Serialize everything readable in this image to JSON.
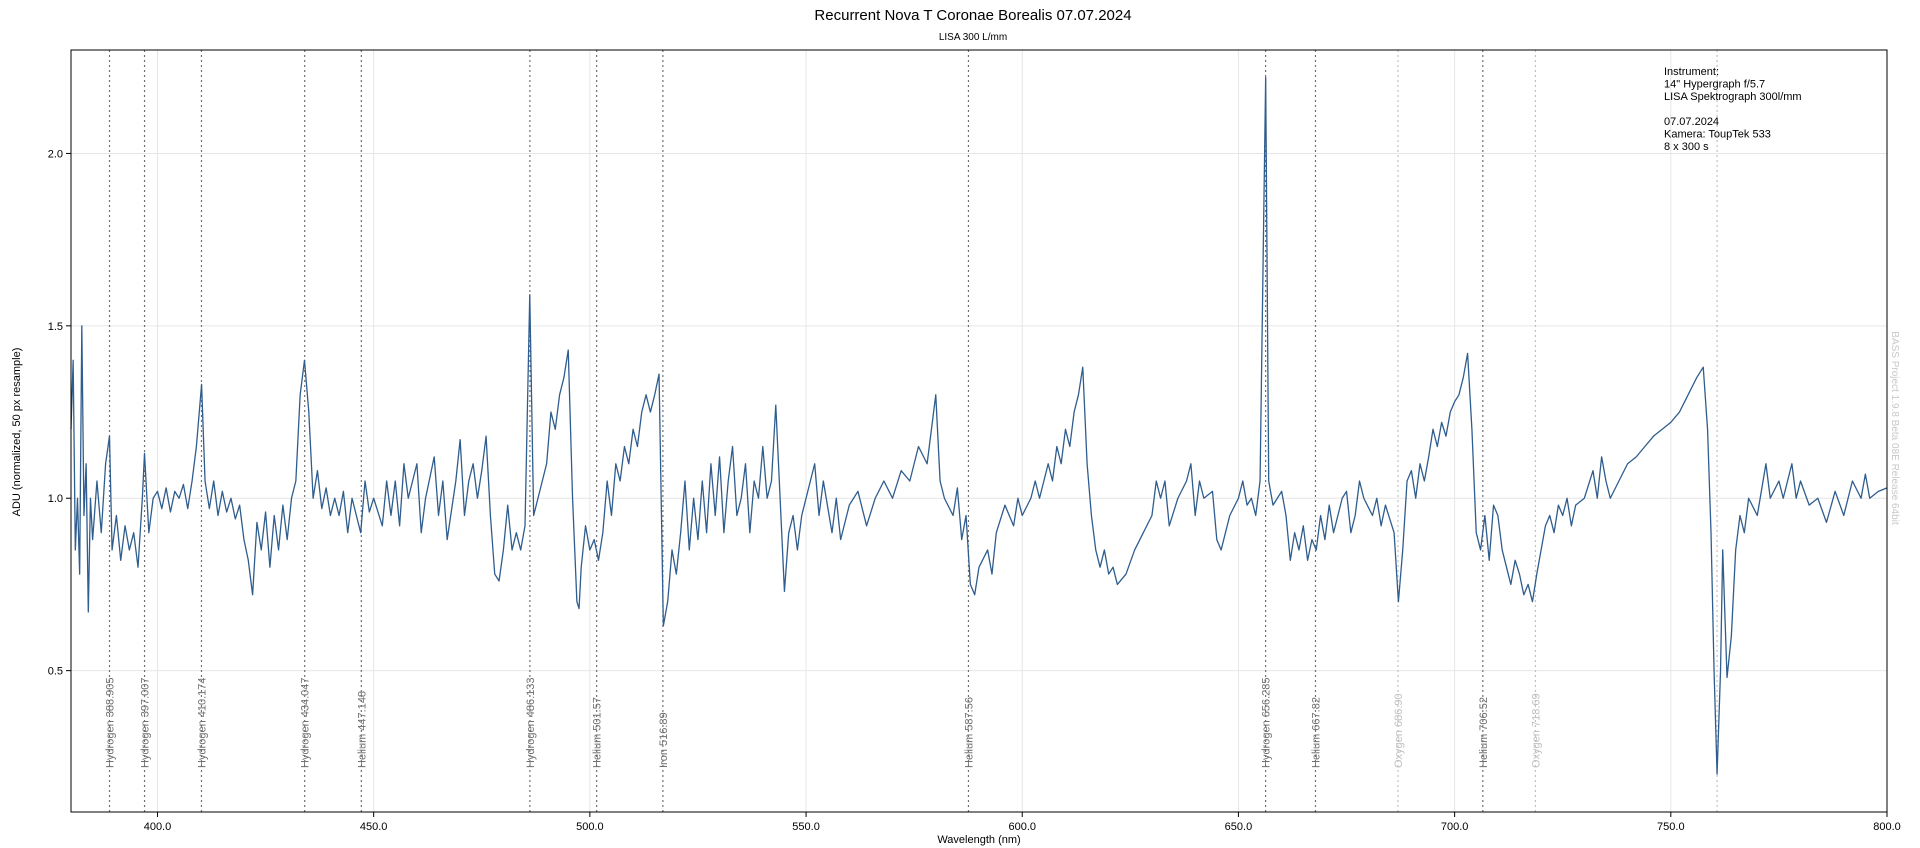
{
  "chart_data": {
    "type": "line",
    "title": "Recurrent Nova T Coronae Borealis  07.07.2024",
    "subtitle": "LISA 300 L/mm",
    "x_label": "Wavelength (nm)",
    "y_label": "ADU (normalized, 50 px resample)",
    "color": "#2f5d8e",
    "grid": true,
    "xlim": [
      380,
      800
    ],
    "ylim": [
      0.09,
      2.3
    ],
    "xticks": [
      {
        "value": 400,
        "label": "400.0"
      },
      {
        "value": 450,
        "label": "450.0"
      },
      {
        "value": 500,
        "label": "500.0"
      },
      {
        "value": 550,
        "label": "550.0"
      },
      {
        "value": 600,
        "label": "600.0"
      },
      {
        "value": 650,
        "label": "650.0"
      },
      {
        "value": 700,
        "label": "700.0"
      },
      {
        "value": 750,
        "label": "750.0"
      },
      {
        "value": 800,
        "label": "800.0"
      }
    ],
    "yticks": [
      0.5,
      {
        "value": 1,
        "label": "1.0"
      },
      1.5,
      {
        "value": 2,
        "label": "2.0"
      }
    ],
    "x": [
      380,
      380.5,
      381,
      381.5,
      382,
      382.5,
      383,
      383.5,
      384,
      384.5,
      385,
      386,
      387,
      388,
      388.9,
      389.5,
      390.5,
      391.5,
      392.5,
      393.5,
      394.5,
      395.5,
      396.5,
      397,
      398,
      399,
      400,
      401,
      402,
      403,
      404,
      405,
      406,
      407,
      408,
      409,
      410.2,
      411,
      412,
      413,
      414,
      415,
      416,
      417,
      418,
      419,
      420,
      421,
      422,
      423,
      424,
      425,
      426,
      427,
      428,
      429,
      430,
      431,
      432,
      433,
      434,
      435,
      436,
      437,
      438,
      439,
      440,
      441,
      442,
      443,
      444,
      445,
      446,
      447,
      448,
      449,
      450,
      452,
      453,
      454,
      455,
      456,
      457,
      458,
      460,
      461,
      462,
      464,
      465,
      466,
      467,
      469,
      470,
      471,
      472,
      473,
      474,
      475,
      476,
      477,
      478,
      479,
      480,
      481,
      482,
      483,
      484,
      485,
      486.1,
      487,
      488,
      489,
      490,
      491,
      492,
      493,
      494,
      495,
      496,
      497,
      497.5,
      498,
      499,
      500,
      501,
      502,
      503,
      504,
      505,
      506,
      507,
      508,
      509,
      510,
      511,
      512,
      513,
      514,
      515,
      516,
      517,
      518,
      519,
      520,
      521,
      522,
      523,
      524,
      525,
      526,
      527,
      528,
      529,
      530,
      531,
      532,
      533,
      534,
      535,
      536,
      537,
      538,
      539,
      540,
      541,
      542,
      543,
      544,
      545,
      546,
      547,
      548,
      549,
      550,
      552,
      553,
      554,
      556,
      557,
      558,
      560,
      562,
      564,
      566,
      568,
      570,
      572,
      574,
      576,
      578,
      579,
      580,
      581,
      582,
      584,
      585,
      586,
      587,
      588,
      589,
      590,
      592,
      593,
      594,
      596,
      598,
      599,
      600,
      602,
      603,
      604,
      606,
      607,
      608,
      609,
      610,
      611,
      612,
      613,
      614,
      615,
      616,
      617,
      618,
      619,
      620,
      621,
      622,
      624,
      626,
      628,
      630,
      631,
      632,
      633,
      634,
      636,
      638,
      639,
      640,
      641,
      642,
      644,
      645,
      646,
      647,
      648,
      650,
      651,
      652,
      653,
      654,
      655,
      656.3,
      657,
      658,
      659,
      660,
      661,
      662,
      663,
      664,
      665,
      666,
      667,
      668,
      669,
      670,
      671,
      672,
      673,
      674,
      675,
      676,
      677,
      678,
      679,
      681,
      682,
      683,
      684,
      686,
      687,
      688,
      689,
      690,
      691,
      692,
      693,
      694,
      695,
      696,
      697,
      698,
      699,
      700,
      701,
      702,
      703,
      704,
      705,
      706,
      707,
      708,
      709,
      710,
      711,
      712,
      713,
      714,
      715,
      716,
      717,
      718,
      719,
      720,
      721,
      722,
      723,
      724,
      725,
      726,
      727,
      728,
      730,
      732,
      733,
      734,
      735,
      736,
      738,
      740,
      742,
      744,
      746,
      748,
      750,
      752,
      754,
      756,
      757.5,
      758.5,
      759.3,
      760,
      760.7,
      761.5,
      762,
      763,
      764,
      765,
      766,
      767,
      768,
      770,
      772,
      773,
      775,
      776,
      778,
      779,
      780,
      782,
      784,
      786,
      788,
      790,
      792,
      794,
      795,
      796,
      798,
      800
    ],
    "values": [
      1.2,
      1.4,
      0.85,
      1.0,
      0.78,
      1.5,
      0.95,
      1.1,
      0.67,
      1.0,
      0.88,
      1.05,
      0.9,
      1.1,
      1.18,
      0.85,
      0.95,
      0.82,
      0.92,
      0.85,
      0.9,
      0.8,
      1.0,
      1.13,
      0.9,
      1.0,
      1.02,
      0.97,
      1.03,
      0.96,
      1.02,
      1.0,
      1.04,
      0.97,
      1.05,
      1.15,
      1.33,
      1.05,
      0.97,
      1.05,
      0.95,
      1.02,
      0.96,
      1.0,
      0.94,
      0.98,
      0.88,
      0.82,
      0.72,
      0.93,
      0.85,
      0.96,
      0.8,
      0.95,
      0.85,
      0.98,
      0.88,
      1.0,
      1.05,
      1.3,
      1.4,
      1.25,
      1.0,
      1.08,
      0.97,
      1.03,
      0.95,
      1.0,
      0.95,
      1.02,
      0.9,
      1.0,
      0.95,
      0.9,
      1.05,
      0.96,
      1.0,
      0.92,
      1.05,
      0.95,
      1.05,
      0.92,
      1.1,
      1.0,
      1.1,
      0.9,
      1.0,
      1.12,
      0.95,
      1.05,
      0.88,
      1.05,
      1.17,
      0.95,
      1.05,
      1.1,
      1.0,
      1.08,
      1.18,
      0.95,
      0.78,
      0.76,
      0.85,
      0.98,
      0.85,
      0.9,
      0.85,
      0.92,
      1.59,
      0.95,
      1.0,
      1.05,
      1.1,
      1.25,
      1.2,
      1.3,
      1.35,
      1.43,
      1.0,
      0.7,
      0.68,
      0.8,
      0.92,
      0.85,
      0.88,
      0.82,
      0.9,
      1.05,
      0.95,
      1.1,
      1.05,
      1.15,
      1.1,
      1.2,
      1.15,
      1.25,
      1.3,
      1.25,
      1.3,
      1.36,
      0.63,
      0.7,
      0.85,
      0.78,
      0.9,
      1.05,
      0.85,
      1.0,
      0.88,
      1.05,
      0.9,
      1.1,
      0.95,
      1.12,
      0.9,
      1.05,
      1.15,
      0.95,
      1.0,
      1.1,
      0.9,
      1.05,
      1.0,
      1.15,
      1.0,
      1.05,
      1.27,
      1.0,
      0.73,
      0.9,
      0.95,
      0.85,
      0.95,
      1.0,
      1.1,
      0.95,
      1.05,
      0.9,
      1.0,
      0.88,
      0.98,
      1.02,
      0.92,
      1.0,
      1.05,
      1.0,
      1.08,
      1.05,
      1.15,
      1.1,
      1.2,
      1.3,
      1.05,
      1.0,
      0.95,
      1.03,
      0.88,
      0.95,
      0.75,
      0.72,
      0.8,
      0.85,
      0.78,
      0.9,
      0.98,
      0.92,
      1.0,
      0.95,
      1.0,
      1.05,
      1.0,
      1.1,
      1.05,
      1.15,
      1.1,
      1.2,
      1.15,
      1.25,
      1.3,
      1.38,
      1.1,
      0.95,
      0.85,
      0.8,
      0.85,
      0.78,
      0.8,
      0.75,
      0.78,
      0.85,
      0.9,
      0.95,
      1.05,
      1.0,
      1.05,
      0.92,
      1.0,
      1.05,
      1.1,
      0.95,
      1.05,
      1.0,
      1.02,
      0.88,
      0.85,
      0.9,
      0.95,
      1.0,
      1.05,
      0.98,
      1.0,
      0.95,
      1.05,
      2.22,
      1.05,
      0.98,
      1.0,
      1.02,
      0.95,
      0.82,
      0.9,
      0.85,
      0.92,
      0.82,
      0.88,
      0.85,
      0.95,
      0.88,
      0.98,
      0.9,
      0.95,
      1.0,
      1.02,
      0.9,
      0.95,
      1.05,
      1.0,
      0.95,
      1.0,
      0.92,
      0.98,
      0.9,
      0.7,
      0.85,
      1.05,
      1.08,
      1.0,
      1.1,
      1.05,
      1.12,
      1.2,
      1.15,
      1.22,
      1.18,
      1.25,
      1.28,
      1.3,
      1.35,
      1.42,
      1.2,
      0.9,
      0.85,
      0.95,
      0.82,
      0.98,
      0.95,
      0.85,
      0.8,
      0.75,
      0.82,
      0.78,
      0.72,
      0.75,
      0.7,
      0.78,
      0.85,
      0.92,
      0.95,
      0.9,
      0.98,
      0.95,
      1.0,
      0.92,
      0.98,
      1.0,
      1.08,
      1.0,
      1.12,
      1.05,
      1.0,
      1.05,
      1.1,
      1.12,
      1.15,
      1.18,
      1.2,
      1.22,
      1.25,
      1.3,
      1.35,
      1.38,
      1.2,
      0.9,
      0.5,
      0.2,
      0.5,
      0.85,
      0.48,
      0.6,
      0.85,
      0.95,
      0.9,
      1.0,
      0.95,
      1.1,
      1.0,
      1.05,
      1.0,
      1.1,
      1.0,
      1.05,
      0.98,
      1.0,
      0.93,
      1.02,
      0.95,
      1.05,
      1.0,
      1.07,
      1.0,
      1.02,
      1.03
    ],
    "lines": [
      {
        "label": "Hydrogen 388.905",
        "value": 388.905,
        "color": "#707070"
      },
      {
        "label": "Hydrogen 397.007",
        "value": 397.007,
        "color": "#707070"
      },
      {
        "label": "Hydrogen 410.174",
        "value": 410.174,
        "color": "#707070"
      },
      {
        "label": "Hydrogen 434.047",
        "value": 434.047,
        "color": "#707070"
      },
      {
        "label": "Helium 447.148",
        "value": 447.148,
        "color": "#707070"
      },
      {
        "label": "Hydrogen 486.133",
        "value": 486.133,
        "color": "#707070"
      },
      {
        "label": "Helium 501.57",
        "value": 501.57,
        "color": "#707070"
      },
      {
        "label": "Iron 516.89",
        "value": 516.89,
        "color": "#707070"
      },
      {
        "label": "Helium 587.56",
        "value": 587.56,
        "color": "#707070"
      },
      {
        "label": "Hydrogen 656.285",
        "value": 656.285,
        "color": "#707070"
      },
      {
        "label": "Helium 667.82",
        "value": 667.82,
        "color": "#707070"
      },
      {
        "label": "Oxygen 686.90",
        "value": 686.9,
        "color": "#c0c0c0"
      },
      {
        "label": "Helium 706.52",
        "value": 706.52,
        "color": "#707070"
      },
      {
        "label": "Oxygen 718.69",
        "value": 718.69,
        "color": "#c0c0c0"
      },
      {
        "label": null,
        "value": 760.7,
        "color": "#c0c0c0"
      }
    ],
    "info": [
      [
        "Instrument:",
        "14\" Hypergraph f/5.7",
        "LISA Spektrograph 300l/mm"
      ],
      [
        "07.07.2024",
        "Kamera: ToupTek 533",
        "8 x 300 s"
      ]
    ],
    "watermark": "BASS Project 1.9.8 Beta 08E Release 64bit"
  }
}
